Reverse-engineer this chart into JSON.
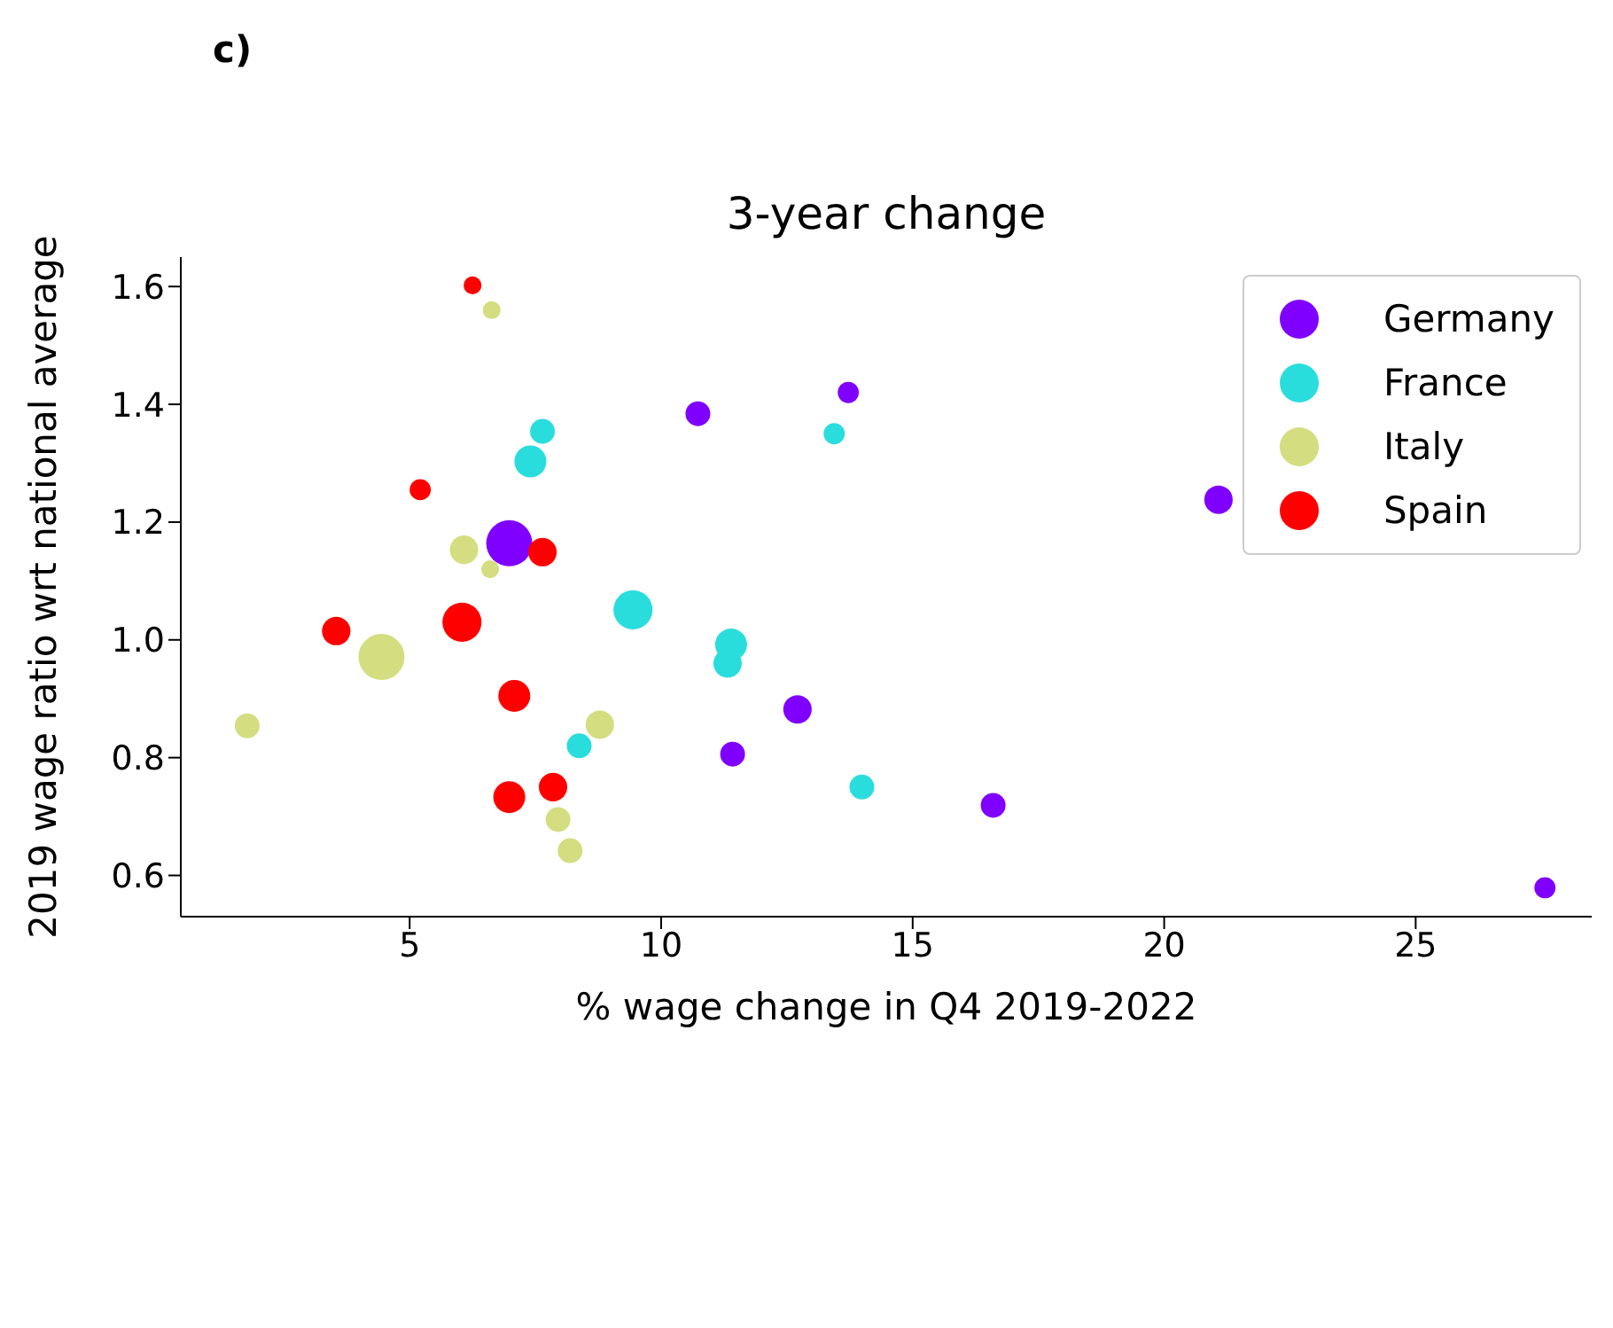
{
  "chart_data": {
    "type": "bubble",
    "title": "3-year change",
    "xlabel": "% wage change in Q4 2019-2022",
    "ylabel": "2019 wage ratio wrt national average",
    "annotations": [
      "c)"
    ],
    "xlim": [
      0.45,
      28.5
    ],
    "ylim": [
      0.53,
      1.65
    ],
    "xticks": [
      5,
      10,
      15,
      20,
      25
    ],
    "yticks": [
      0.6,
      0.8,
      {
        "value": 1,
        "label": "1.0"
      },
      1.2,
      1.4,
      1.6
    ],
    "legend": "top right",
    "marker": "circle",
    "series": [
      {
        "name": "Germany",
        "color": "#8000ff",
        "x": [
          6.98,
          10.73,
          13.72,
          21.08,
          12.71,
          11.42,
          16.6,
          27.57
        ],
        "values": [
          1.164,
          1.384,
          1.42,
          1.238,
          0.882,
          0.806,
          0.719,
          0.579
        ],
        "sizes": [
          1,
          0.29,
          0.21,
          0.38,
          0.38,
          0.29,
          0.29,
          0.21
        ]
      },
      {
        "name": "France",
        "color": "#2adddd",
        "x": [
          7.64,
          7.4,
          13.44,
          9.44,
          11.39,
          11.32,
          8.37,
          13.99
        ],
        "values": [
          1.354,
          1.303,
          1.35,
          1.051,
          0.992,
          0.96,
          0.82,
          0.75
        ],
        "sizes": [
          0.29,
          0.48,
          0.21,
          0.72,
          0.48,
          0.38,
          0.29,
          0.29
        ]
      },
      {
        "name": "Italy",
        "color": "#d4dd80",
        "x": [
          6.63,
          6.08,
          6.6,
          4.44,
          1.77,
          8.78,
          7.95,
          8.19
        ],
        "values": [
          1.56,
          1.153,
          1.12,
          0.971,
          0.854,
          0.856,
          0.695,
          0.642
        ],
        "sizes": [
          0.15,
          0.38,
          0.15,
          1,
          0.29,
          0.38,
          0.29,
          0.29
        ]
      },
      {
        "name": "Spain",
        "color": "#ff0000",
        "x": [
          6.25,
          5.21,
          7.64,
          6.04,
          3.54,
          7.08,
          6.98,
          7.85
        ],
        "values": [
          1.602,
          1.255,
          1.149,
          1.03,
          1.015,
          0.905,
          0.733,
          0.75
        ],
        "sizes": [
          0.15,
          0.21,
          0.38,
          0.72,
          0.38,
          0.48,
          0.48,
          0.38
        ]
      }
    ]
  }
}
